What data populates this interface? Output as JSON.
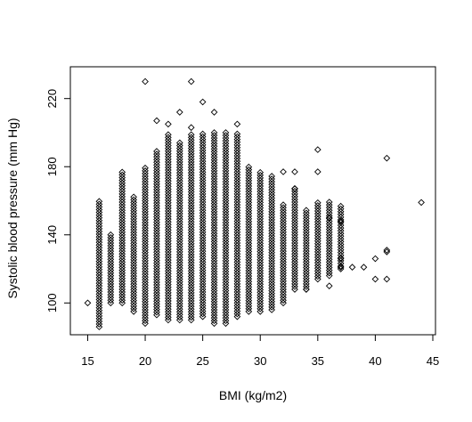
{
  "chart_data": {
    "type": "scatter",
    "title": "",
    "xlabel": "BMI (kg/m2)",
    "ylabel": "Systolic blood pressure (mm Hg)",
    "xlim": [
      14.5,
      45
    ],
    "ylim": [
      85,
      235
    ],
    "xticks": [
      15,
      20,
      25,
      30,
      35,
      40,
      45
    ],
    "yticks": [
      100,
      140,
      180,
      220
    ],
    "grid": false,
    "legend": "none",
    "marker": "open-diamond",
    "columns": [
      {
        "x": 15,
        "y_min": 100,
        "y_max": 100
      },
      {
        "x": 16,
        "y_min": 86,
        "y_max": 160
      },
      {
        "x": 17,
        "y_min": 100,
        "y_max": 140
      },
      {
        "x": 18,
        "y_min": 100,
        "y_max": 177
      },
      {
        "x": 19,
        "y_min": 95,
        "y_max": 163
      },
      {
        "x": 20,
        "y_min": 88,
        "y_max": 180
      },
      {
        "x": 21,
        "y_min": 93,
        "y_max": 190
      },
      {
        "x": 22,
        "y_min": 90,
        "y_max": 200
      },
      {
        "x": 23,
        "y_min": 90,
        "y_max": 195
      },
      {
        "x": 24,
        "y_min": 90,
        "y_max": 200
      },
      {
        "x": 25,
        "y_min": 92,
        "y_max": 200
      },
      {
        "x": 26,
        "y_min": 88,
        "y_max": 200
      },
      {
        "x": 27,
        "y_min": 88,
        "y_max": 200
      },
      {
        "x": 28,
        "y_min": 92,
        "y_max": 200
      },
      {
        "x": 29,
        "y_min": 95,
        "y_max": 180
      },
      {
        "x": 30,
        "y_min": 95,
        "y_max": 178
      },
      {
        "x": 31,
        "y_min": 96,
        "y_max": 175
      },
      {
        "x": 32,
        "y_min": 100,
        "y_max": 158
      },
      {
        "x": 33,
        "y_min": 108,
        "y_max": 168
      },
      {
        "x": 34,
        "y_min": 108,
        "y_max": 155
      },
      {
        "x": 35,
        "y_min": 114,
        "y_max": 160
      },
      {
        "x": 36,
        "y_min": 116,
        "y_max": 160
      },
      {
        "x": 37,
        "y_min": 120,
        "y_max": 158
      }
    ],
    "points": [
      {
        "x": 20,
        "y": 230
      },
      {
        "x": 24,
        "y": 230
      },
      {
        "x": 25,
        "y": 218
      },
      {
        "x": 21,
        "y": 207
      },
      {
        "x": 23,
        "y": 212
      },
      {
        "x": 26,
        "y": 212
      },
      {
        "x": 22,
        "y": 205
      },
      {
        "x": 28,
        "y": 205
      },
      {
        "x": 24,
        "y": 203
      },
      {
        "x": 32,
        "y": 177
      },
      {
        "x": 33,
        "y": 177
      },
      {
        "x": 35,
        "y": 190
      },
      {
        "x": 35,
        "y": 177
      },
      {
        "x": 33,
        "y": 167
      },
      {
        "x": 36,
        "y": 150
      },
      {
        "x": 37,
        "y": 148
      },
      {
        "x": 37,
        "y": 126
      },
      {
        "x": 37,
        "y": 121
      },
      {
        "x": 38,
        "y": 121
      },
      {
        "x": 39,
        "y": 121
      },
      {
        "x": 40,
        "y": 114
      },
      {
        "x": 40,
        "y": 126
      },
      {
        "x": 41,
        "y": 185
      },
      {
        "x": 41,
        "y": 131
      },
      {
        "x": 41,
        "y": 130
      },
      {
        "x": 41,
        "y": 114
      },
      {
        "x": 44,
        "y": 159
      },
      {
        "x": 36,
        "y": 110
      },
      {
        "x": 34,
        "y": 108
      }
    ]
  }
}
